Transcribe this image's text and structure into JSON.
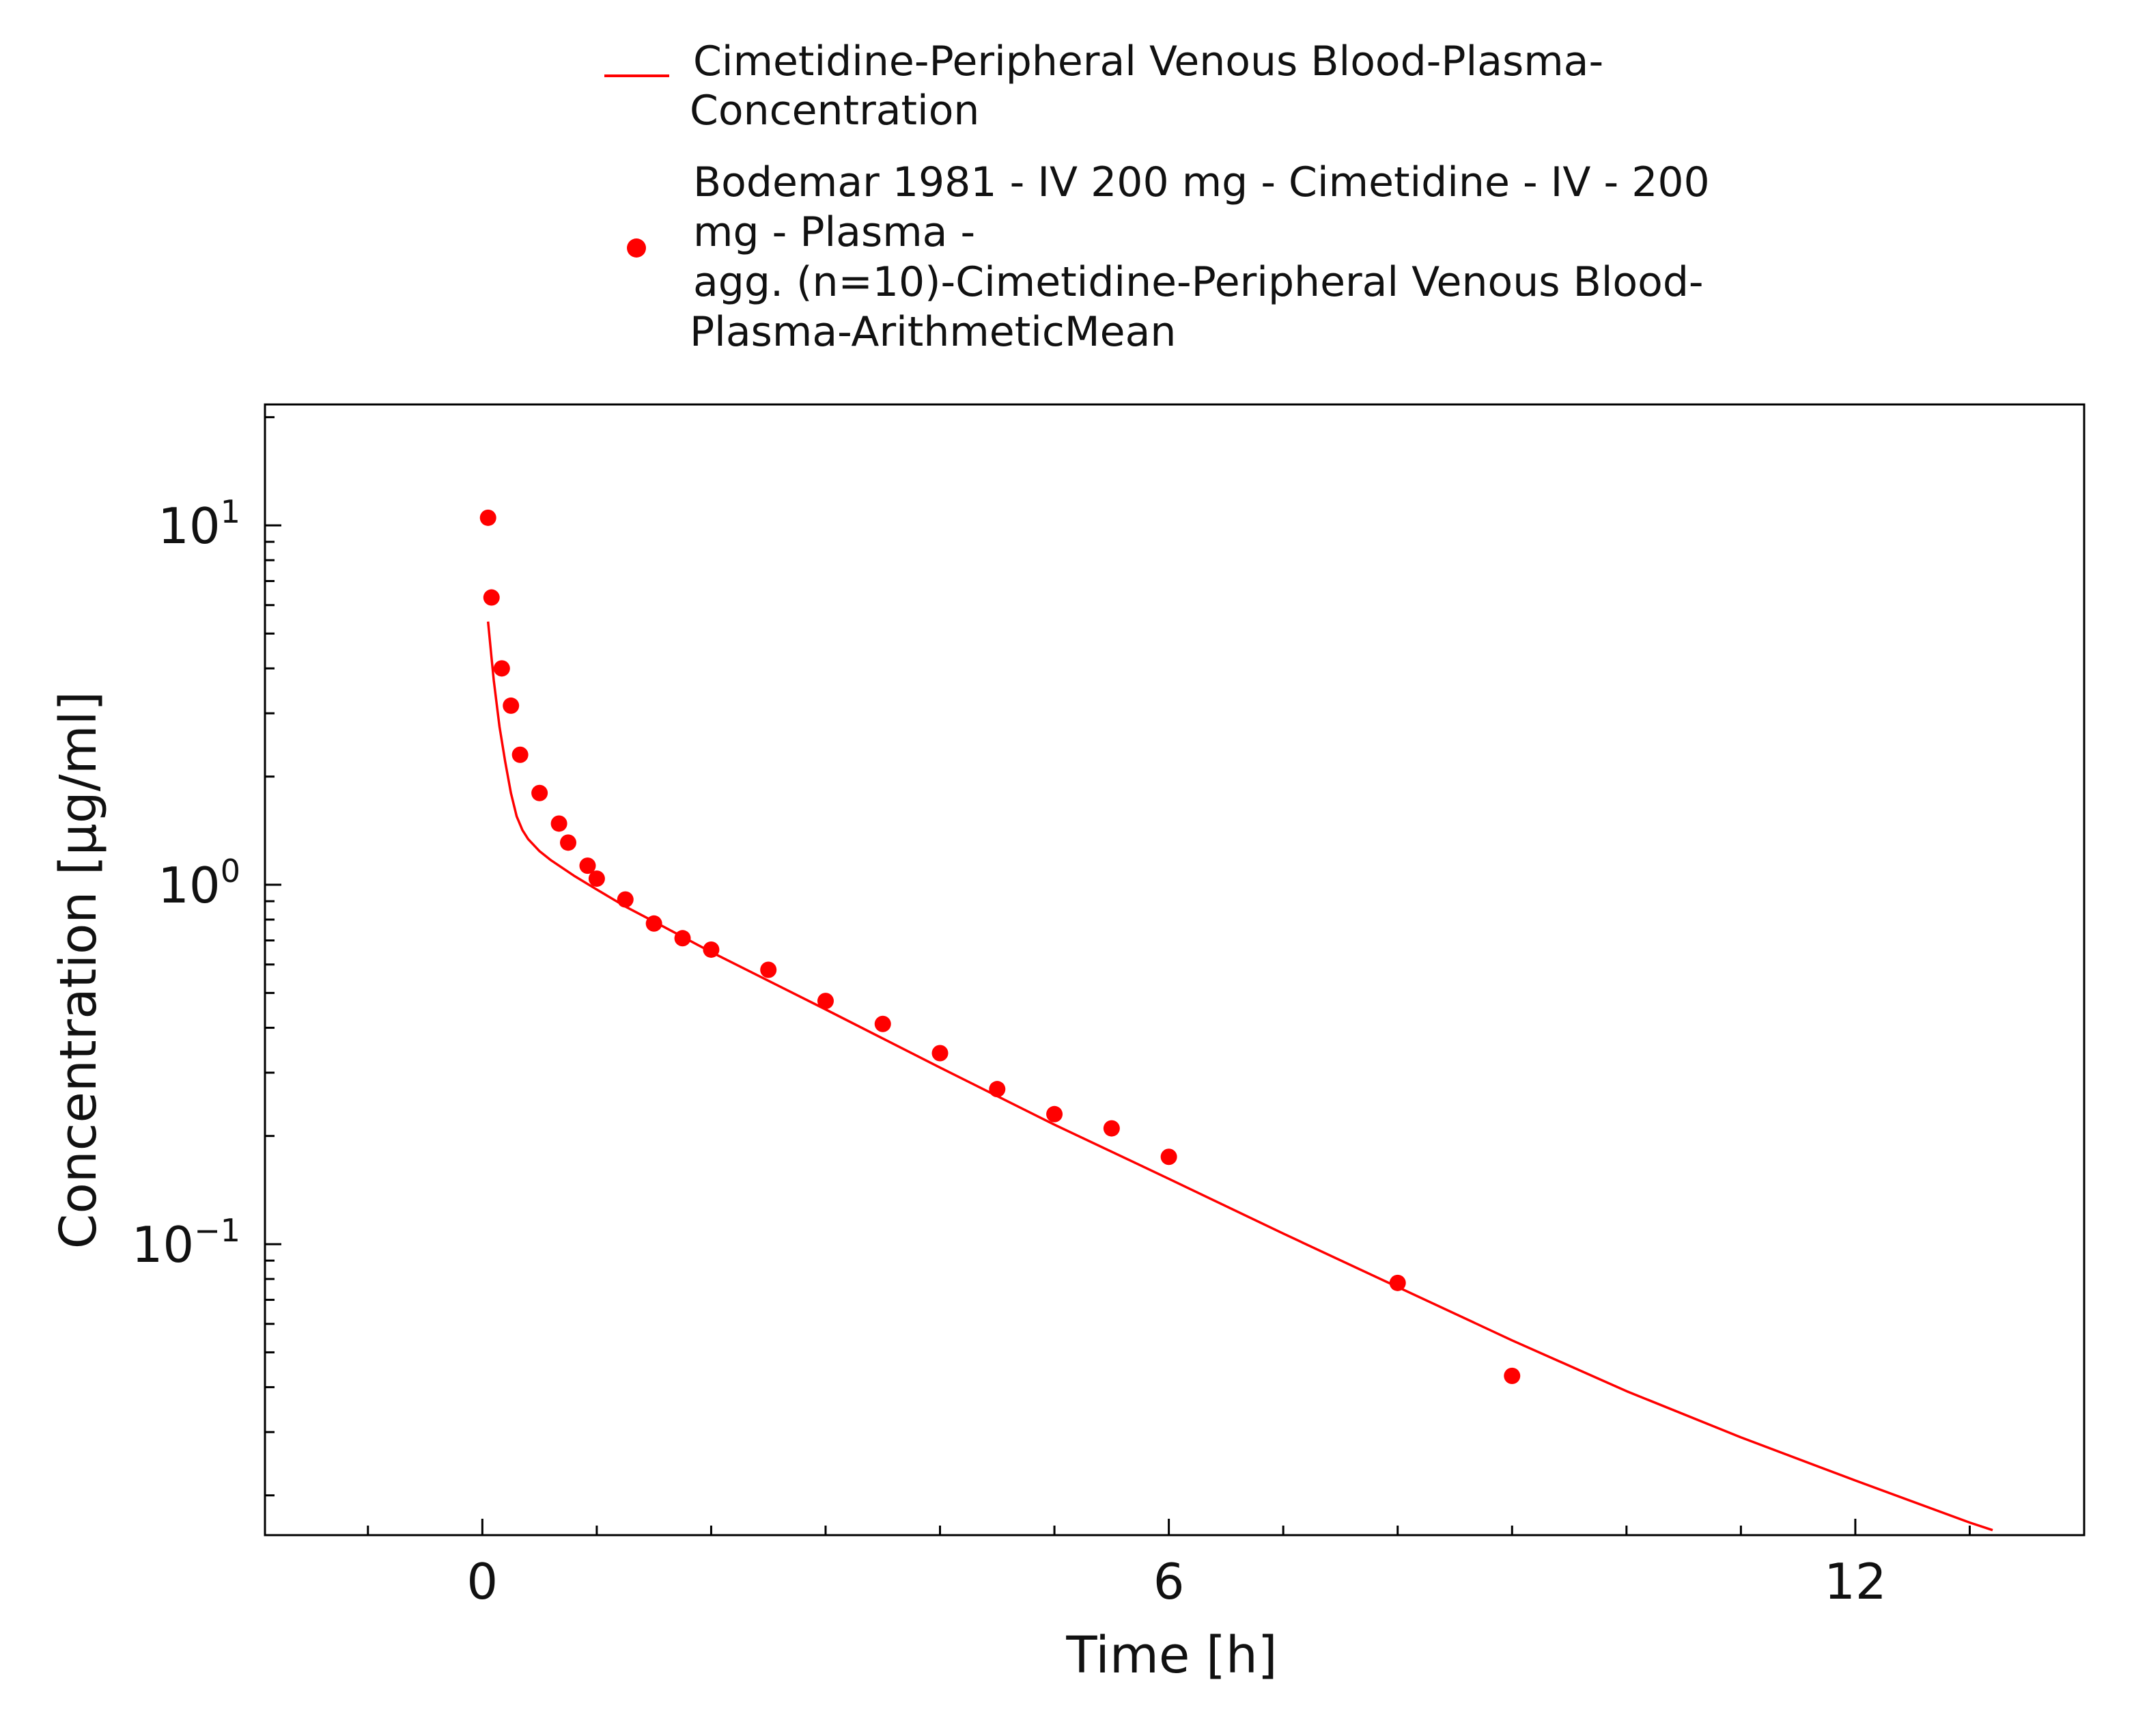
{
  "colors": {
    "series": "#ff0000",
    "axis": "#000000",
    "background": "#ffffff"
  },
  "chart_data": {
    "type": "line",
    "title": "",
    "xlabel": "Time [h]",
    "ylabel": "Concentration [µg/ml]",
    "xlim": [
      -1.9,
      14.0
    ],
    "ylim": [
      0.0155,
      21.7
    ],
    "yscale": "log",
    "grid": false,
    "legend_position": "top",
    "x_ticks": [
      {
        "value": 0,
        "label": "0"
      },
      {
        "value": 6,
        "label": "6"
      },
      {
        "value": 12,
        "label": "12"
      }
    ],
    "y_ticks": [
      {
        "value": 10,
        "base": "10",
        "exp": "1"
      },
      {
        "value": 1,
        "base": "10",
        "exp": "0"
      },
      {
        "value": 0.1,
        "base": "10",
        "exp": "−1"
      }
    ],
    "legend": [
      {
        "kind": "line",
        "lines": [
          "Cimetidine-Peripheral Venous Blood-Plasma-",
          "Concentration"
        ]
      },
      {
        "kind": "marker",
        "lines": [
          "Bodemar 1981 - IV 200 mg - Cimetidine - IV - 200",
          "mg - Plasma -",
          "agg. (n=10)-Cimetidine-Peripheral Venous Blood-",
          "Plasma-ArithmeticMean"
        ]
      }
    ],
    "series": [
      {
        "name": "Cimetidine-Peripheral Venous Blood-Plasma-Concentration",
        "type": "line",
        "x": [
          0.05,
          0.08,
          0.1,
          0.13,
          0.15,
          0.2,
          0.25,
          0.3,
          0.35,
          0.4,
          0.5,
          0.6,
          0.8,
          1.0,
          1.25,
          1.5,
          2.0,
          3.0,
          4.0,
          5.0,
          6.0,
          7.0,
          8.0,
          9.0,
          10.0,
          11.0,
          12.0,
          13.0,
          13.2
        ],
        "y": [
          5.4,
          4.3,
          3.7,
          3.1,
          2.75,
          2.2,
          1.8,
          1.55,
          1.42,
          1.34,
          1.24,
          1.17,
          1.06,
          0.97,
          0.87,
          0.79,
          0.65,
          0.45,
          0.31,
          0.215,
          0.152,
          0.107,
          0.076,
          0.054,
          0.039,
          0.029,
          0.022,
          0.0168,
          0.016
        ]
      },
      {
        "name": "Bodemar 1981 - IV 200 mg - Cimetidine - IV - 200 mg - Plasma - agg. (n=10)-Cimetidine-Peripheral Venous Blood-Plasma-ArithmeticMean",
        "type": "scatter",
        "x": [
          0.05,
          0.08,
          0.17,
          0.25,
          0.33,
          0.5,
          0.67,
          0.75,
          0.92,
          1.0,
          1.25,
          1.5,
          1.75,
          2.0,
          2.5,
          3.0,
          3.5,
          4.0,
          4.5,
          5.0,
          5.5,
          6.0,
          8.0,
          9.0
        ],
        "y": [
          10.5,
          6.3,
          4.0,
          3.15,
          2.3,
          1.8,
          1.48,
          1.31,
          1.13,
          1.04,
          0.91,
          0.78,
          0.71,
          0.66,
          0.58,
          0.475,
          0.41,
          0.34,
          0.27,
          0.23,
          0.21,
          0.175,
          0.078,
          0.043
        ]
      }
    ]
  }
}
